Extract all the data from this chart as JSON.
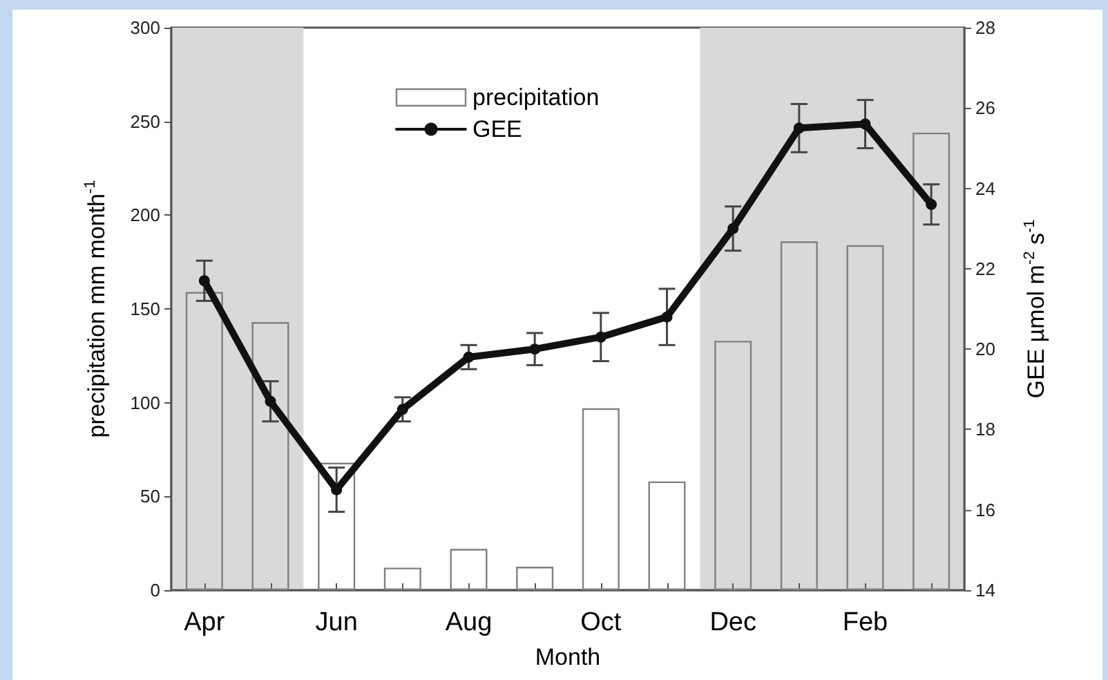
{
  "chart_data": {
    "type": "bar",
    "xlabel": "Month",
    "ylabel": "precipitation mm month$^{-1}$",
    "y2label": "GEE µmol m$^{-2}$ s$^{-1}$",
    "categories": [
      "Apr",
      null,
      "Jun",
      null,
      "Aug",
      null,
      "Oct",
      null,
      "Dec",
      null,
      "Feb",
      null
    ],
    "series": [
      {
        "name": "precipitation",
        "color": "#808080",
        "values": [
          159,
          143,
          68,
          12,
          22,
          12.5,
          97,
          58,
          133,
          186,
          184,
          244
        ]
      },
      {
        "name": "GEE",
        "type": "line",
        "axis": "y2",
        "color": "#111111",
        "marker": "circle",
        "values": [
          21.7,
          18.7,
          16.5,
          18.5,
          19.8,
          20.0,
          20.3,
          20.8,
          23.0,
          25.5,
          25.6,
          23.6
        ],
        "errors": [
          0.5,
          0.5,
          0.55,
          0.3,
          0.3,
          0.4,
          0.6,
          0.7,
          0.55,
          0.6,
          0.6,
          0.5
        ]
      }
    ],
    "ylim": [
      0,
      300
    ],
    "yticks": [
      0,
      50,
      100,
      150,
      200,
      250,
      300
    ],
    "y2lim": [
      14,
      28
    ],
    "y2ticks": [
      14,
      16,
      18,
      20,
      22,
      24,
      26,
      28
    ],
    "grid": false,
    "legend": "top"
  }
}
